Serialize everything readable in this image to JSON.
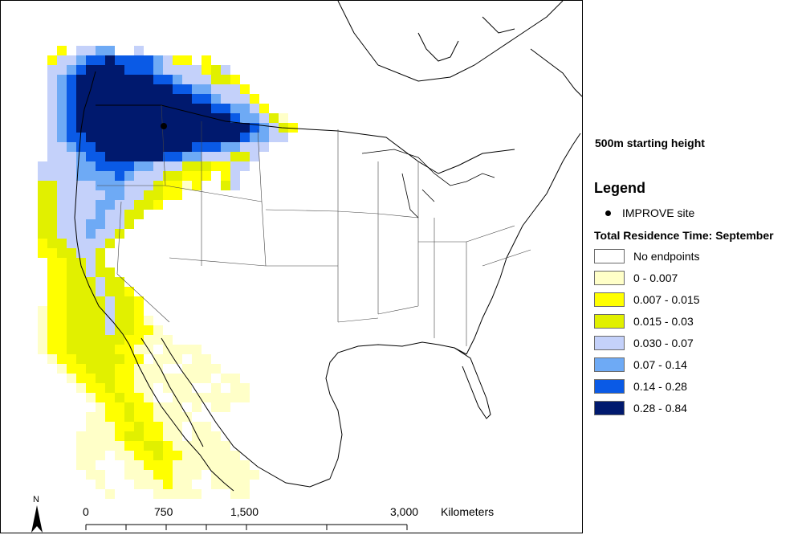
{
  "map": {
    "subtitle": "500m starting height",
    "legend_title": "Legend",
    "site_label": "IMPROVE site",
    "residence_title": "Total Residence Time: September",
    "legend_items": [
      {
        "label": "No endpoints",
        "color": "#ffffff"
      },
      {
        "label": "0 - 0.007",
        "color": "#ffffc8"
      },
      {
        "label": "0.007 - 0.015",
        "color": "#ffff00"
      },
      {
        "label": "0.015 - 0.03",
        "color": "#e1f000"
      },
      {
        "label": "0.030 - 0.07",
        "color": "#c4d1fa"
      },
      {
        "label": "0.07 - 0.14",
        "color": "#6eaaf5"
      },
      {
        "label": "0.14 - 0.28",
        "color": "#0a5ae6"
      },
      {
        "label": "0.28 - 0.84",
        "color": "#00196e"
      }
    ],
    "scale": {
      "ticks": [
        "0",
        "750",
        "1,500",
        "3,000"
      ],
      "unit": "Kilometers"
    },
    "north_label": "N",
    "site_marker_icon": "black-dot"
  }
}
